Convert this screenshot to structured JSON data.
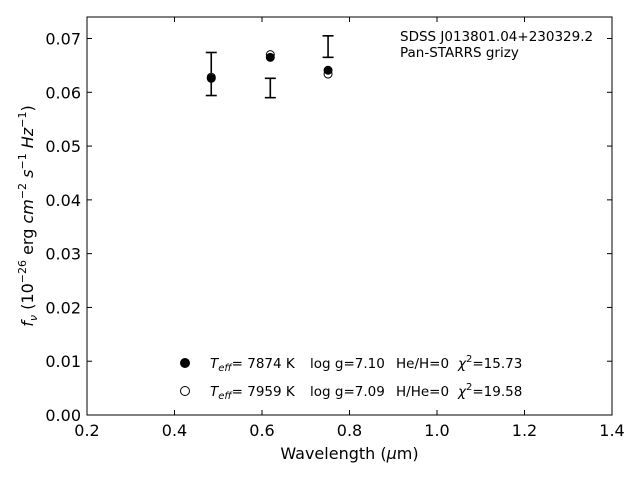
{
  "chart_data": {
    "type": "scatter",
    "xlabel": "Wavelength (μm)",
    "ylabel": "fν (10⁻²⁶ erg cm⁻² s⁻¹ Hz⁻¹)",
    "xlim": [
      0.2,
      1.4
    ],
    "ylim": [
      0.0,
      0.074
    ],
    "xticks": [
      "0.2",
      "0.4",
      "0.6",
      "0.8",
      "1.0",
      "1.2",
      "1.4"
    ],
    "yticks": [
      "0.00",
      "0.01",
      "0.02",
      "0.03",
      "0.04",
      "0.05",
      "0.06",
      "0.07"
    ],
    "grid": false,
    "legend_position": "bottom-center",
    "annotations": [
      "SDSS J013801.04+230329.2",
      "Pan-STARRS grizy"
    ],
    "observed": {
      "x": [
        0.484,
        0.619,
        0.751
      ],
      "y": [
        0.0634,
        0.0608,
        0.0685
      ],
      "err": [
        0.004,
        0.0018,
        0.002
      ]
    },
    "series": [
      {
        "legend": {
          "teff_label": "T",
          "teff_sub": "eff",
          "teff_value": "=  7874 K",
          "logg": "log g=7.10",
          "comp": "He/H=0",
          "chi": "χ",
          "chi_sup": "2",
          "chi_value": "=15.73"
        },
        "marker": "filled",
        "x": [
          0.484,
          0.619,
          0.751
        ],
        "y": [
          0.0626,
          0.0665,
          0.0641
        ]
      },
      {
        "legend": {
          "teff_label": "T",
          "teff_sub": "eff",
          "teff_value": "=  7959 K",
          "logg": "log g=7.09",
          "comp": "H/He=0",
          "chi": "χ",
          "chi_sup": "2",
          "chi_value": "=19.58"
        },
        "marker": "open",
        "x": [
          0.484,
          0.619,
          0.751
        ],
        "y": [
          0.0628,
          0.067,
          0.0634
        ]
      }
    ],
    "colors": {
      "marker": "#000000",
      "axis": "#000000",
      "background": "#ffffff"
    }
  }
}
